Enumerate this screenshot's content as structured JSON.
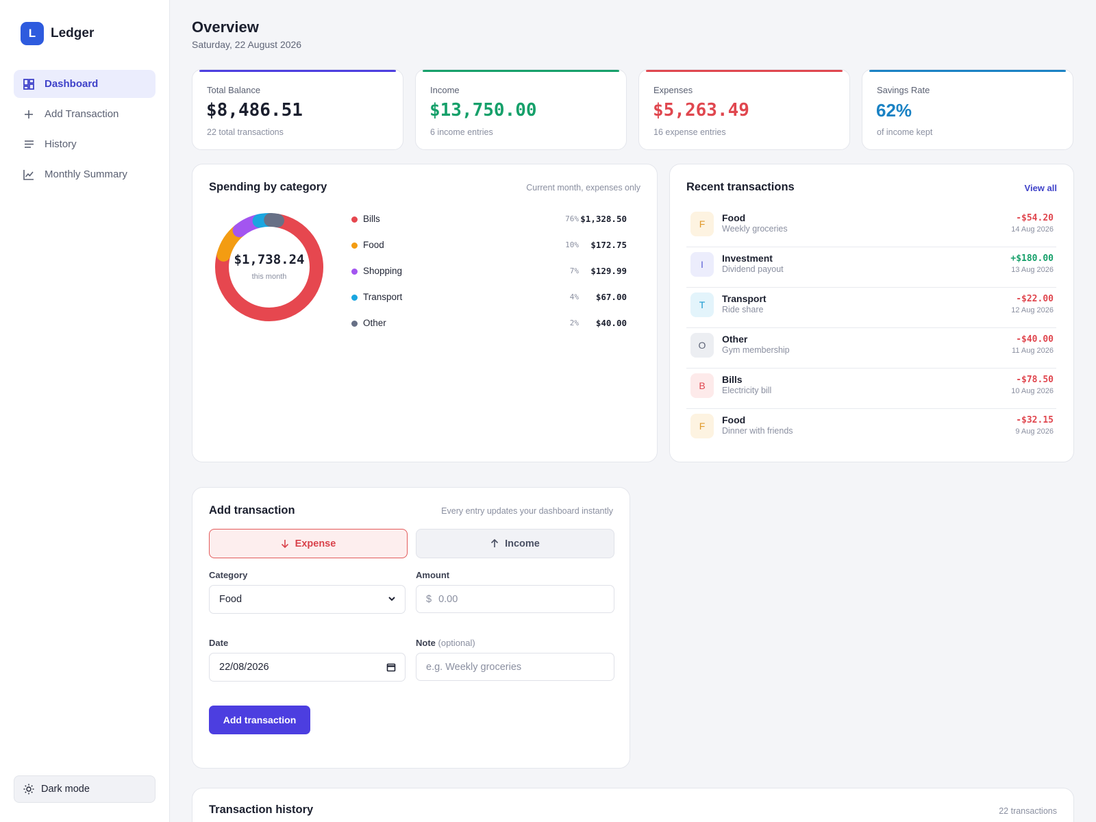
{
  "app": {
    "logo_letter": "L",
    "name": "Ledger"
  },
  "sidebar": {
    "items": [
      {
        "label": "Dashboard",
        "icon": "dashboard-icon",
        "active": true
      },
      {
        "label": "Add Transaction",
        "icon": "plus-icon"
      },
      {
        "label": "History",
        "icon": "list-icon"
      },
      {
        "label": "Monthly Summary",
        "icon": "chart-icon"
      }
    ],
    "dark_mode_label": "Dark mode"
  },
  "header": {
    "title": "Overview",
    "date": "Saturday, 22 August 2026"
  },
  "stats": [
    {
      "label": "Total Balance",
      "value": "$8,486.51",
      "sub": "22 total transactions",
      "color": "#4c3ee0",
      "value_color": "#1b1f2e"
    },
    {
      "label": "Income",
      "value": "$13,750.00",
      "sub": "6 income entries",
      "color": "#16a06a",
      "value_color": "#16a06a"
    },
    {
      "label": "Expenses",
      "value": "$5,263.49",
      "sub": "16 expense entries",
      "color": "#e0474f",
      "value_color": "#e0474f"
    },
    {
      "label": "Savings Rate",
      "value": "62%",
      "sub": "of income kept",
      "color": "#1a82c4",
      "value_color": "#1a82c4"
    }
  ],
  "spending": {
    "title": "Spending by category",
    "hint": "Current month, expenses only",
    "total": "$1,738.24",
    "total_sub": "this month",
    "categories": [
      {
        "name": "Bills",
        "pct": "76%",
        "amount": "$1,328.50",
        "value": 1328.5,
        "color": "#e6474f"
      },
      {
        "name": "Food",
        "pct": "10%",
        "amount": "$172.75",
        "value": 172.75,
        "color": "#f39c12"
      },
      {
        "name": "Shopping",
        "pct": "7%",
        "amount": "$129.99",
        "value": 129.99,
        "color": "#a355f0"
      },
      {
        "name": "Transport",
        "pct": "4%",
        "amount": "$67.00",
        "value": 67.0,
        "color": "#1aa6e0"
      },
      {
        "name": "Other",
        "pct": "2%",
        "amount": "$40.00",
        "value": 40.0,
        "color": "#677086"
      }
    ]
  },
  "recent": {
    "title": "Recent transactions",
    "view_all": "View all",
    "items": [
      {
        "letter": "F",
        "name": "Food",
        "note": "Weekly groceries",
        "amount": "-$54.20",
        "date": "14 Aug 2026",
        "bg": "#fdf3e1",
        "fg": "#e0992a",
        "amount_color": "#e0474f"
      },
      {
        "letter": "I",
        "name": "Investment",
        "note": "Dividend payout",
        "amount": "+$180.00",
        "date": "13 Aug 2026",
        "bg": "#ecedfc",
        "fg": "#5b5fd6",
        "amount_color": "#16a06a"
      },
      {
        "letter": "T",
        "name": "Transport",
        "note": "Ride share",
        "amount": "-$22.00",
        "date": "12 Aug 2026",
        "bg": "#e3f4fb",
        "fg": "#1a9ad0",
        "amount_color": "#e0474f"
      },
      {
        "letter": "O",
        "name": "Other",
        "note": "Gym membership",
        "amount": "-$40.00",
        "date": "11 Aug 2026",
        "bg": "#eceef2",
        "fg": "#5f6577",
        "amount_color": "#e0474f"
      },
      {
        "letter": "B",
        "name": "Bills",
        "note": "Electricity bill",
        "amount": "-$78.50",
        "date": "10 Aug 2026",
        "bg": "#fdeaea",
        "fg": "#e0474f",
        "amount_color": "#e0474f"
      },
      {
        "letter": "F",
        "name": "Food",
        "note": "Dinner with friends",
        "amount": "-$32.15",
        "date": "9 Aug 2026",
        "bg": "#fdf3e1",
        "fg": "#e0992a",
        "amount_color": "#e0474f"
      }
    ]
  },
  "add_form": {
    "title": "Add transaction",
    "hint": "Every entry updates your dashboard instantly",
    "expense_label": "Expense",
    "income_label": "Income",
    "category_label": "Category",
    "category_value": "Food",
    "amount_label": "Amount",
    "amount_prefix": "$",
    "amount_placeholder": "0.00",
    "date_label": "Date",
    "date_value": "22/08/2026",
    "note_label": "Note",
    "note_optional": "(optional)",
    "note_placeholder": "e.g. Weekly groceries",
    "submit_label": "Add transaction"
  },
  "history": {
    "title": "Transaction history",
    "count": "22 transactions"
  }
}
